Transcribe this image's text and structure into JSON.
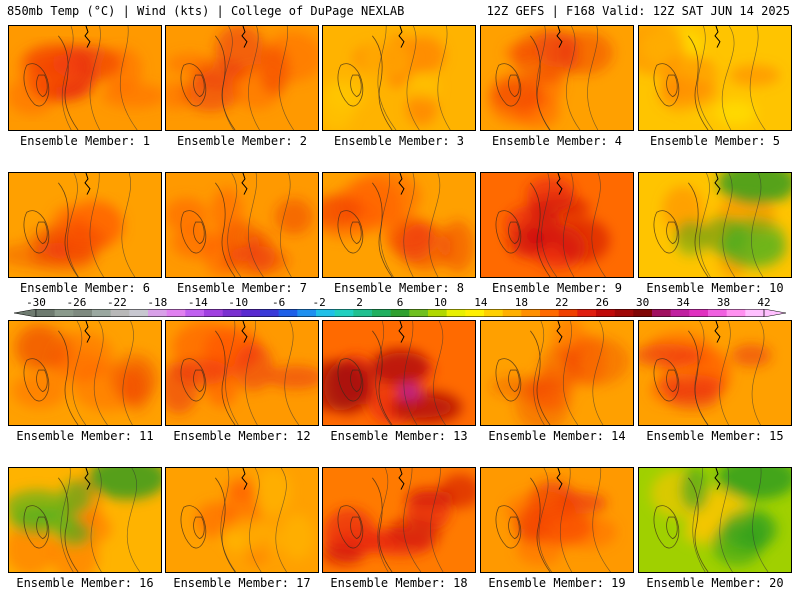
{
  "header": {
    "left": "850mb Temp (°C) | Wind (kts) | College of DuPage NEXLAB",
    "right": "12Z GEFS | F168 Valid: 12Z SAT JUN 14 2025"
  },
  "panel_label_prefix": "Ensemble Member: ",
  "members": [
    {
      "label": "Ensemble Member: 1",
      "base": "#ff9900",
      "blobs": [
        [
          "#e8280e",
          0.6
        ],
        [
          "#ff5a00",
          0.4
        ]
      ],
      "hot": "none"
    },
    {
      "label": "Ensemble Member: 2",
      "base": "#ff9900",
      "blobs": [
        [
          "#e8280e",
          0.5
        ],
        [
          "#ff5a00",
          0.4
        ]
      ],
      "hot": "none"
    },
    {
      "label": "Ensemble Member: 3",
      "base": "#ffb300",
      "blobs": [
        [
          "#ff6a00",
          0.5
        ],
        [
          "#ffd000",
          0.4
        ]
      ],
      "hot": "none"
    },
    {
      "label": "Ensemble Member: 4",
      "base": "#ffa000",
      "blobs": [
        [
          "#ff5a00",
          0.5
        ],
        [
          "#e8280e",
          0.4
        ]
      ],
      "hot": "none"
    },
    {
      "label": "Ensemble Member: 5",
      "base": "#ffc400",
      "blobs": [
        [
          "#ffee00",
          0.5
        ],
        [
          "#ff6a00",
          0.4
        ]
      ],
      "hot": "none"
    },
    {
      "label": "Ensemble Member: 6",
      "base": "#ffa000",
      "blobs": [
        [
          "#ff5a00",
          0.5
        ],
        [
          "#e8280e",
          0.3
        ]
      ],
      "hot": "none"
    },
    {
      "label": "Ensemble Member: 7",
      "base": "#ff9900",
      "blobs": [
        [
          "#ff5a00",
          0.5
        ],
        [
          "#e8280e",
          0.4
        ]
      ],
      "hot": "none"
    },
    {
      "label": "Ensemble Member: 8",
      "base": "#ffa000",
      "blobs": [
        [
          "#ff5a00",
          0.5
        ],
        [
          "#e8280e",
          0.4
        ]
      ],
      "hot": "none"
    },
    {
      "label": "Ensemble Member: 9",
      "base": "#ff6a00",
      "blobs": [
        [
          "#e8280e",
          0.7
        ],
        [
          "#c80a0a",
          0.5
        ]
      ],
      "hot": "none"
    },
    {
      "label": "Ensemble Member: 10",
      "base": "#ffc400",
      "blobs": [
        [
          "#ff8000",
          0.5
        ],
        [
          "#40b020",
          0.5
        ]
      ],
      "hot": "green"
    },
    {
      "label": "Ensemble Member: 11",
      "base": "#ffa000",
      "blobs": [
        [
          "#ff6a00",
          0.5
        ],
        [
          "#e8280e",
          0.3
        ]
      ],
      "hot": "none"
    },
    {
      "label": "Ensemble Member: 12",
      "base": "#ff9900",
      "blobs": [
        [
          "#ff5a00",
          0.6
        ],
        [
          "#e8280e",
          0.5
        ]
      ],
      "hot": "none"
    },
    {
      "label": "Ensemble Member: 13",
      "base": "#ff6a00",
      "blobs": [
        [
          "#e8280e",
          0.7
        ],
        [
          "#a00a0a",
          0.6
        ]
      ],
      "hot": "magenta"
    },
    {
      "label": "Ensemble Member: 14",
      "base": "#ffa000",
      "blobs": [
        [
          "#ff6a00",
          0.5
        ],
        [
          "#e8280e",
          0.3
        ]
      ],
      "hot": "none"
    },
    {
      "label": "Ensemble Member: 15",
      "base": "#ffa000",
      "blobs": [
        [
          "#ff5a00",
          0.5
        ],
        [
          "#e8280e",
          0.5
        ]
      ],
      "hot": "none"
    },
    {
      "label": "Ensemble Member: 16",
      "base": "#ffb300",
      "blobs": [
        [
          "#ff6a00",
          0.5
        ],
        [
          "#40b020",
          0.6
        ]
      ],
      "hot": "green"
    },
    {
      "label": "Ensemble Member: 17",
      "base": "#ffa000",
      "blobs": [
        [
          "#ff5a00",
          0.5
        ],
        [
          "#ffc400",
          0.4
        ]
      ],
      "hot": "none"
    },
    {
      "label": "Ensemble Member: 18",
      "base": "#ff7a00",
      "blobs": [
        [
          "#e8280e",
          0.7
        ],
        [
          "#c80a0a",
          0.5
        ]
      ],
      "hot": "none"
    },
    {
      "label": "Ensemble Member: 19",
      "base": "#ff9900",
      "blobs": [
        [
          "#e8280e",
          0.6
        ],
        [
          "#ff5a00",
          0.4
        ]
      ],
      "hot": "none"
    },
    {
      "label": "Ensemble Member: 20",
      "base": "#a0d000",
      "blobs": [
        [
          "#ffc400",
          0.6
        ],
        [
          "#30a020",
          0.6
        ]
      ],
      "hot": "green"
    }
  ],
  "colorbar": {
    "tick_labels": [
      "-30",
      "-26",
      "-22",
      "-18",
      "-14",
      "-10",
      "-6",
      "-2",
      "2",
      "6",
      "10",
      "14",
      "18",
      "22",
      "26",
      "30",
      "34",
      "38",
      "42"
    ],
    "colors": [
      "#6e7b70",
      "#8a9a8c",
      "#7e8a80",
      "#9aa8a0",
      "#b8b8b8",
      "#c7c7d0",
      "#d8a0e8",
      "#e080f0",
      "#c060f0",
      "#a040e0",
      "#7a30d0",
      "#5a2ad0",
      "#3a3ad8",
      "#1e60e8",
      "#1e90f0",
      "#20c0e8",
      "#20d0c0",
      "#20c090",
      "#20b060",
      "#30a030",
      "#70c020",
      "#b0d800",
      "#e8f000",
      "#fff000",
      "#ffd000",
      "#ffb000",
      "#ff9000",
      "#ff6a00",
      "#f04000",
      "#e01e10",
      "#c00a0a",
      "#a00808",
      "#800606",
      "#a01060",
      "#c020a0",
      "#e030c0",
      "#f060e0",
      "#ff90f0",
      "#ffc0ff"
    ]
  }
}
